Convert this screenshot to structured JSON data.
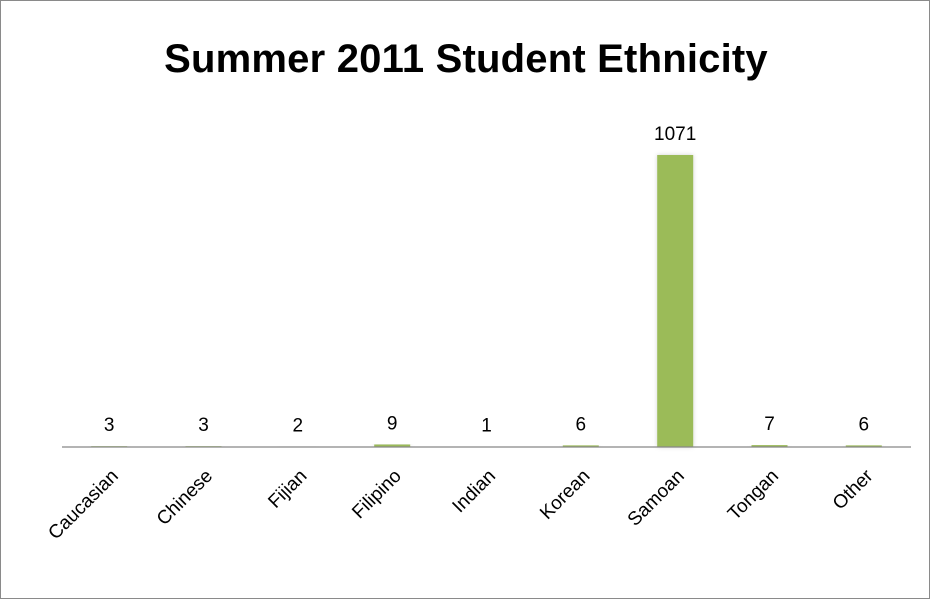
{
  "chart_data": {
    "type": "bar",
    "title": "Summer 2011 Student Ethnicity",
    "xlabel": "",
    "ylabel": "",
    "categories": [
      "Caucasian",
      "Chinese",
      "Fijian",
      "Filipino",
      "Indian",
      "Korean",
      "Samoan",
      "Tongan",
      "Other"
    ],
    "values": [
      3,
      3,
      2,
      9,
      1,
      6,
      1071,
      7,
      6
    ],
    "data_labels": [
      "3",
      "3",
      "2",
      "9",
      "1",
      "6",
      "1071",
      "7",
      "6"
    ],
    "ylim": [
      0,
      1071
    ],
    "grid": false,
    "legend": "none",
    "bar_color": "#9bbb59",
    "axis_color": "#868686"
  }
}
